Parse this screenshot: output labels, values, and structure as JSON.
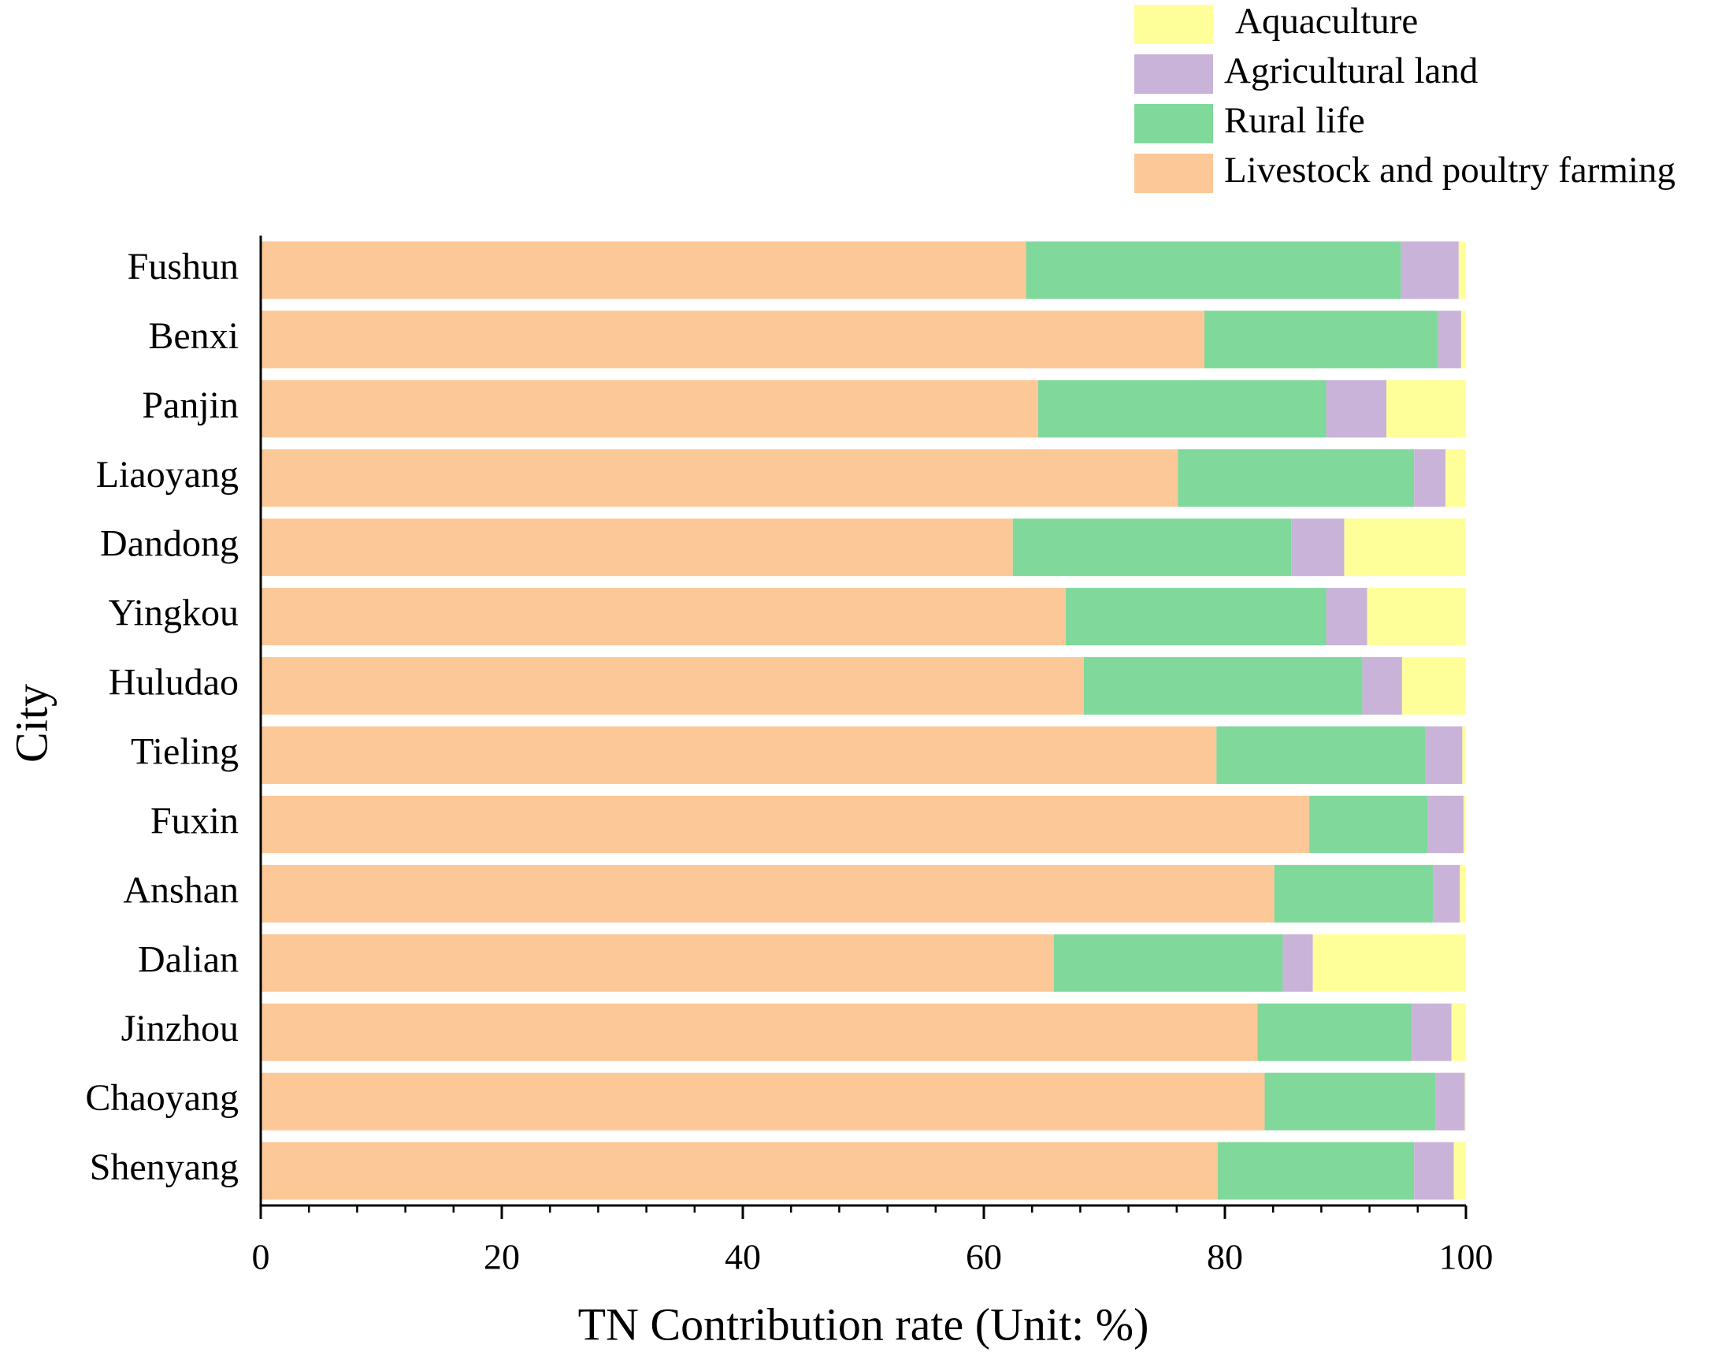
{
  "chart_data": {
    "type": "stacked-barh",
    "x_label": "TN Contribution rate (Unit: %)",
    "y_label": "City",
    "categories": [
      "Fushun",
      "Benxi",
      "Panjin",
      "Liaoyang",
      "Dandong",
      "Yingkou",
      "Huludao",
      "Tieling",
      "Fuxin",
      "Anshan",
      "Dalian",
      "Jinzhou",
      "Chaoyang",
      "Shenyang"
    ],
    "series": [
      {
        "name": "Livestock and poultry farming",
        "color": "#fdc897",
        "values": [
          63.5,
          78.3,
          64.5,
          76.1,
          62.4,
          66.8,
          68.3,
          79.3,
          87.0,
          84.1,
          65.8,
          82.7,
          83.3,
          79.4
        ]
      },
      {
        "name": "Rural life",
        "color": "#80d89b",
        "values": [
          31.1,
          19.4,
          23.9,
          19.6,
          23.1,
          21.6,
          23.1,
          17.3,
          9.8,
          13.2,
          19.0,
          12.8,
          14.2,
          16.3
        ]
      },
      {
        "name": "Agricultural land",
        "color": "#c9b3d8",
        "values": [
          4.8,
          1.9,
          5.0,
          2.6,
          4.4,
          3.4,
          3.3,
          3.1,
          3.0,
          2.2,
          2.5,
          3.3,
          2.4,
          3.3
        ]
      },
      {
        "name": "Aquaculture",
        "color": "#ffff99",
        "values": [
          0.6,
          0.4,
          6.6,
          1.7,
          10.1,
          8.2,
          5.3,
          0.3,
          0.2,
          0.5,
          12.7,
          1.2,
          0.1,
          1.0
        ]
      }
    ],
    "xlim": [
      0,
      100
    ],
    "xticks": [
      0,
      20,
      40,
      60,
      80,
      100
    ],
    "legend": "top-right"
  }
}
